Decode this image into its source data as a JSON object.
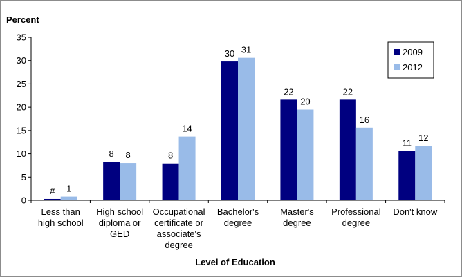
{
  "chart_data": {
    "type": "bar",
    "ylabel": "Percent",
    "xlabel": "Level of Education",
    "ylim": [
      0,
      35
    ],
    "yticks": [
      0,
      5,
      10,
      15,
      20,
      25,
      30,
      35
    ],
    "grid": false,
    "legend_position": "top-right",
    "categories": [
      [
        "Less than",
        "high school"
      ],
      [
        "High school",
        "diploma or",
        "GED"
      ],
      [
        "Occupational",
        "certificate or",
        "associate's",
        "degree"
      ],
      [
        "Bachelor's",
        "degree"
      ],
      [
        "Master's",
        "degree"
      ],
      [
        "Professional",
        "degree"
      ],
      [
        "Don't know"
      ]
    ],
    "series": [
      {
        "name": "2009",
        "color": "#000080",
        "values": [
          0.3,
          8.3,
          7.9,
          29.8,
          21.6,
          21.6,
          10.6
        ],
        "labels": [
          "#",
          "8",
          "8",
          "30",
          "22",
          "22",
          "11"
        ]
      },
      {
        "name": "2012",
        "color": "#99bbe8",
        "values": [
          0.8,
          8.0,
          13.7,
          30.6,
          19.5,
          15.6,
          11.7
        ],
        "labels": [
          "1",
          "8",
          "14",
          "31",
          "20",
          "16",
          "12"
        ]
      }
    ]
  }
}
